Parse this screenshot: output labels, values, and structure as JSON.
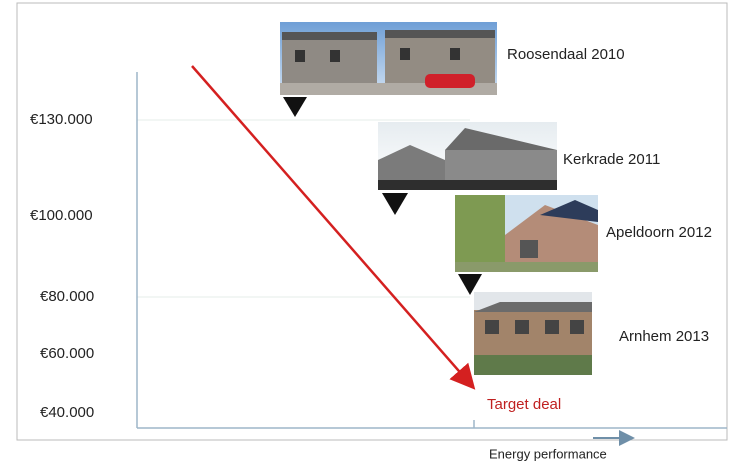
{
  "y_labels": [
    "€130.000",
    "€100.000",
    "€80.000",
    "€60.000",
    "€40.000"
  ],
  "projects": [
    {
      "label": "Roosendaal 2010"
    },
    {
      "label": "Kerkrade 2011"
    },
    {
      "label": "Apeldoorn 2012"
    },
    {
      "label": "Arnhem 2013"
    }
  ],
  "target": "Target deal",
  "x_axis_label": "Energy performance"
}
